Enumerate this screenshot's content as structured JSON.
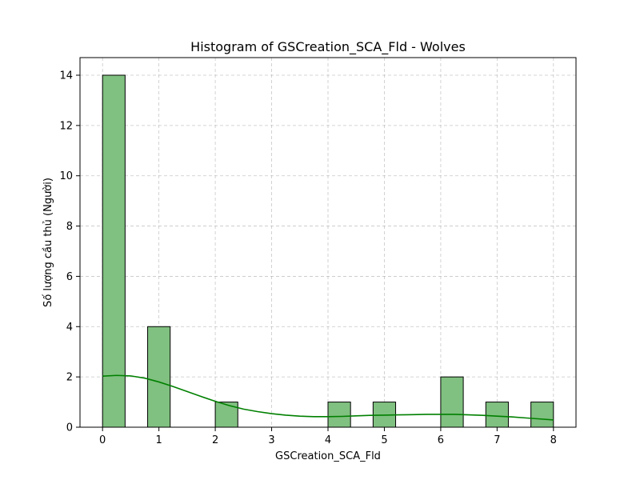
{
  "chart_data": {
    "type": "bar",
    "title": "Histogram of GSCreation_SCA_Fld - Wolves",
    "xlabel": "GSCreation_SCA_Fld",
    "ylabel": "Số lượng cầu thủ (Người)",
    "xlim": [
      -0.4,
      8.4
    ],
    "ylim": [
      0,
      14.7
    ],
    "xticks": [
      0,
      1,
      2,
      3,
      4,
      5,
      6,
      7,
      8
    ],
    "yticks": [
      0,
      2,
      4,
      6,
      8,
      10,
      12,
      14
    ],
    "bins": [
      {
        "x0": 0.0,
        "x1": 0.4,
        "count": 14
      },
      {
        "x0": 0.4,
        "x1": 0.8,
        "count": 0
      },
      {
        "x0": 0.8,
        "x1": 1.2,
        "count": 4
      },
      {
        "x0": 1.2,
        "x1": 1.6,
        "count": 0
      },
      {
        "x0": 1.6,
        "x1": 2.0,
        "count": 0
      },
      {
        "x0": 2.0,
        "x1": 2.4,
        "count": 1
      },
      {
        "x0": 2.4,
        "x1": 2.8,
        "count": 0
      },
      {
        "x0": 2.8,
        "x1": 3.2,
        "count": 0
      },
      {
        "x0": 3.2,
        "x1": 3.6,
        "count": 0
      },
      {
        "x0": 3.6,
        "x1": 4.0,
        "count": 0
      },
      {
        "x0": 4.0,
        "x1": 4.4,
        "count": 1
      },
      {
        "x0": 4.4,
        "x1": 4.8,
        "count": 0
      },
      {
        "x0": 4.8,
        "x1": 5.2,
        "count": 1
      },
      {
        "x0": 5.2,
        "x1": 5.6,
        "count": 0
      },
      {
        "x0": 5.6,
        "x1": 6.0,
        "count": 0
      },
      {
        "x0": 6.0,
        "x1": 6.4,
        "count": 2
      },
      {
        "x0": 6.4,
        "x1": 6.8,
        "count": 0
      },
      {
        "x0": 6.8,
        "x1": 7.2,
        "count": 1
      },
      {
        "x0": 7.2,
        "x1": 7.6,
        "count": 0
      },
      {
        "x0": 7.6,
        "x1": 8.0,
        "count": 1
      }
    ],
    "kde": {
      "x": [
        0,
        0.25,
        0.5,
        0.75,
        1,
        1.25,
        1.5,
        1.75,
        2,
        2.25,
        2.5,
        2.75,
        3,
        3.25,
        3.5,
        3.75,
        4,
        4.25,
        4.5,
        4.75,
        5,
        5.25,
        5.5,
        5.75,
        6,
        6.25,
        6.5,
        6.75,
        7,
        7.25,
        7.5,
        7.75,
        8
      ],
      "y": [
        2.03,
        2.06,
        2.04,
        1.95,
        1.8,
        1.62,
        1.42,
        1.22,
        1.03,
        0.86,
        0.72,
        0.62,
        0.54,
        0.48,
        0.44,
        0.42,
        0.42,
        0.43,
        0.45,
        0.47,
        0.48,
        0.49,
        0.5,
        0.51,
        0.51,
        0.51,
        0.49,
        0.47,
        0.44,
        0.41,
        0.37,
        0.33,
        0.29
      ]
    },
    "colors": {
      "bar_fill": "#80c080",
      "bar_edge": "#000000",
      "kde_line": "#008000"
    },
    "grid": true
  }
}
